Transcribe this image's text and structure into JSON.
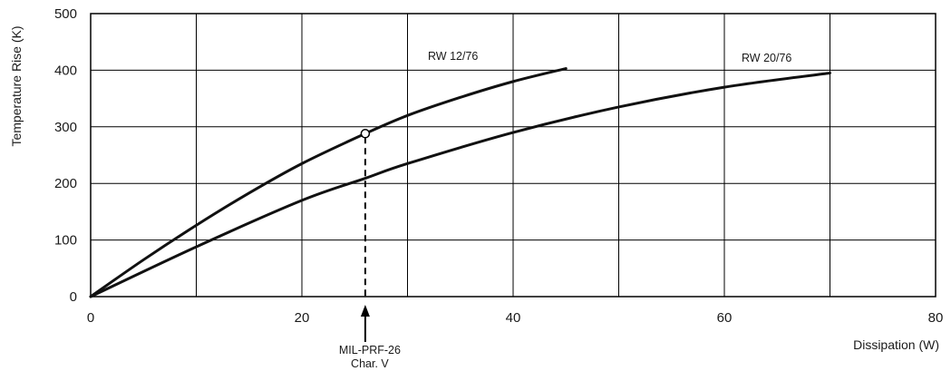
{
  "chart_data": {
    "type": "line",
    "xlabel": "Dissipation (W)",
    "ylabel": "Temperature Rise (K)",
    "xlim": [
      0,
      80
    ],
    "ylim": [
      0,
      500
    ],
    "x_ticks": [
      "0",
      "20",
      "40",
      "60",
      "80"
    ],
    "y_ticks": [
      "0",
      "100",
      "200",
      "300",
      "400",
      "500"
    ],
    "grid": true,
    "series": [
      {
        "name": "RW 12/76",
        "x": [
          0,
          5,
          10,
          15,
          20,
          26,
          30,
          35,
          40,
          45
        ],
        "y": [
          0,
          65,
          126,
          183,
          235,
          288,
          320,
          352,
          380,
          403
        ]
      },
      {
        "name": "RW 20/76",
        "x": [
          0,
          10,
          20,
          26,
          30,
          40,
          50,
          60,
          70
        ],
        "y": [
          0,
          88,
          170,
          209,
          235,
          290,
          335,
          370,
          395
        ]
      }
    ],
    "marker": {
      "x": 26,
      "y": 288
    },
    "annotation": {
      "x": 26,
      "line1": "MIL-PRF-26",
      "line2": "Char. V"
    }
  }
}
